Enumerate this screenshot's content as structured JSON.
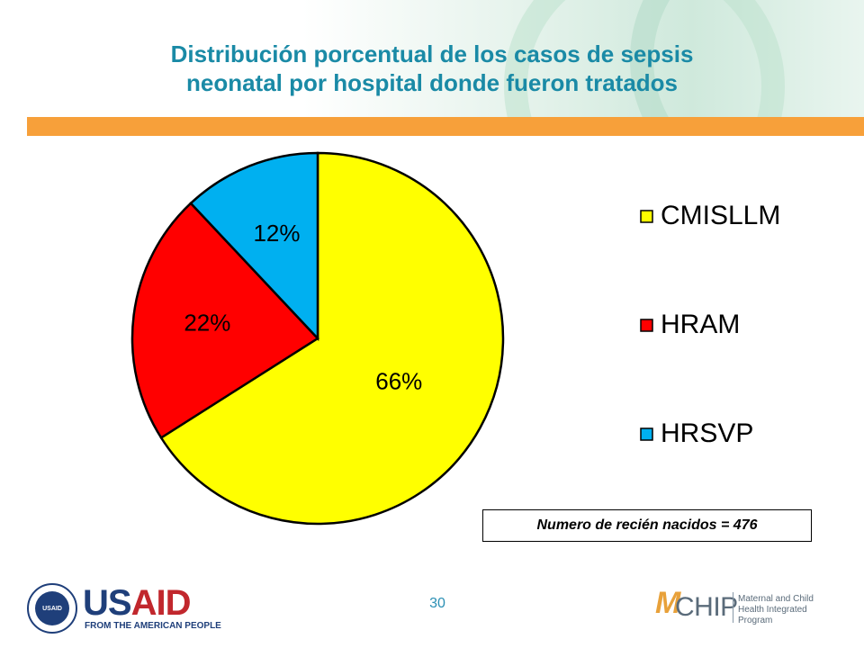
{
  "slide": {
    "title_line1": "Distribución porcentual de los casos de sepsis",
    "title_line2": "neonatal por hospital donde fueron tratados",
    "page_number": "30",
    "note": "Numero de recién nacidos = 476"
  },
  "chart_data": {
    "type": "pie",
    "title": "",
    "slices": [
      {
        "name": "CMISLLM",
        "value": 66,
        "label": "66%",
        "color": "#ffff00"
      },
      {
        "name": "HRAM",
        "value": 22,
        "label": "22%",
        "color": "#ff0000"
      },
      {
        "name": "HRSVP",
        "value": 12,
        "label": "12%",
        "color": "#00b0f0"
      }
    ],
    "legend_placement": "right"
  },
  "logos": {
    "usaid_word_blue": "US",
    "usaid_word_red": "AID",
    "usaid_tagline": "FROM THE AMERICAN PEOPLE",
    "usaid_seal_text": "USAID",
    "chip_word": "CHIP",
    "chip_tagline": "Maternal and Child Health Integrated Program"
  }
}
